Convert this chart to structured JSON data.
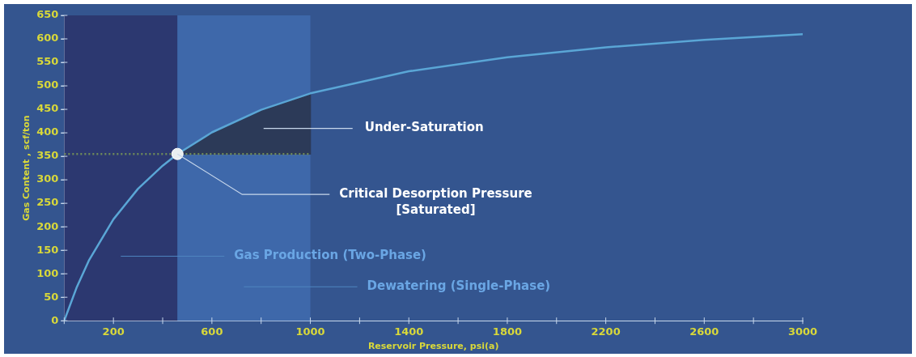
{
  "chart_data": {
    "type": "line",
    "xlabel": "Reservoir Pressure, psi(a)",
    "ylabel": "Gas Content , scf/ton",
    "xlim": [
      0,
      3000
    ],
    "ylim": [
      0,
      650
    ],
    "xticks": [
      {
        "value": 0,
        "label": null
      },
      200,
      {
        "value": 400,
        "label": null
      },
      600,
      {
        "value": 800,
        "label": null
      },
      1000,
      {
        "value": 1200,
        "label": null
      },
      1400,
      {
        "value": 1600,
        "label": null
      },
      1800,
      {
        "value": 2000,
        "label": null
      },
      2200,
      {
        "value": 2400,
        "label": null
      },
      2600,
      {
        "value": 2800,
        "label": null
      },
      3000
    ],
    "yticks": [
      0,
      50,
      100,
      150,
      200,
      250,
      300,
      350,
      400,
      450,
      500,
      550,
      600,
      650
    ],
    "grid": false,
    "legend": false,
    "series": [
      {
        "type": "line",
        "color": "#6f8a5a",
        "line_style": "dotted",
        "x": [
          0,
          1000
        ],
        "values": [
          355,
          355
        ]
      },
      {
        "type": "area",
        "color": "#2c3a58",
        "x": [
          460,
          600,
          800,
          1000
        ],
        "values": [
          355,
          401,
          449,
          484
        ]
      },
      {
        "color": "#5aa6d6",
        "x": [
          0,
          50,
          100,
          200,
          300,
          400,
          460,
          600,
          800,
          1000,
          1400,
          1800,
          2200,
          2600,
          3000
        ],
        "values": [
          0,
          70,
          128,
          216,
          281,
          330,
          355,
          401,
          449,
          484,
          531,
          561,
          582,
          598,
          610
        ]
      },
      {
        "type": "scatter",
        "color": "#e8eef0",
        "marker": "circle",
        "x": [
          460
        ],
        "values": [
          355
        ]
      }
    ],
    "bands": [
      {
        "axis": "x",
        "from": 0,
        "to": 460,
        "label": "Gas Production (Two-Phase)",
        "color": "#2c3870"
      },
      {
        "axis": "x",
        "from": 460,
        "to": 1000,
        "label": "Dewatering (Single-Phase)",
        "color": "#3e68aa"
      }
    ],
    "annotations": [
      "Under-Saturation",
      {
        "text": "Critical Desorption Pressure\n[Saturated]",
        "x": 460,
        "y": 355
      }
    ]
  }
}
